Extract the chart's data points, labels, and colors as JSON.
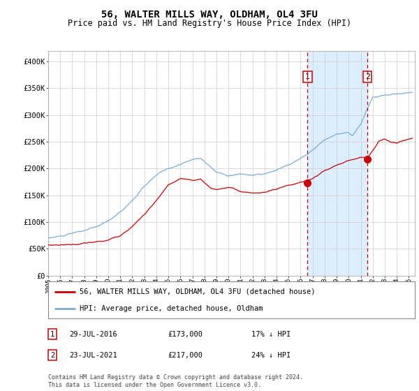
{
  "title": "56, WALTER MILLS WAY, OLDHAM, OL4 3FU",
  "subtitle": "Price paid vs. HM Land Registry's House Price Index (HPI)",
  "legend_line1": "56, WALTER MILLS WAY, OLDHAM, OL4 3FU (detached house)",
  "legend_line2": "HPI: Average price, detached house, Oldham",
  "annotation1_date": "29-JUL-2016",
  "annotation1_price": 173000,
  "annotation1_text": "17% ↓ HPI",
  "annotation2_date": "23-JUL-2021",
  "annotation2_price": 217000,
  "annotation2_text": "24% ↓ HPI",
  "footer": "Contains HM Land Registry data © Crown copyright and database right 2024.\nThis data is licensed under the Open Government Licence v3.0.",
  "hpi_color": "#7aadd6",
  "price_color": "#cc0000",
  "dot_color": "#cc0000",
  "vline_color": "#cc0000",
  "shade_color": "#ddeeff",
  "bg_color": "#ffffff",
  "grid_color": "#cccccc",
  "ylim": [
    0,
    420000
  ],
  "yticks": [
    0,
    50000,
    100000,
    150000,
    200000,
    250000,
    300000,
    350000,
    400000
  ],
  "ytick_labels": [
    "£0",
    "£50K",
    "£100K",
    "£150K",
    "£200K",
    "£250K",
    "£300K",
    "£350K",
    "£400K"
  ],
  "xtick_years": [
    1995,
    1996,
    1997,
    1998,
    1999,
    2000,
    2001,
    2002,
    2003,
    2004,
    2005,
    2006,
    2007,
    2008,
    2009,
    2010,
    2011,
    2012,
    2013,
    2014,
    2015,
    2016,
    2017,
    2018,
    2019,
    2020,
    2021,
    2022,
    2023,
    2024,
    2025
  ],
  "sale1_year": 2016.57,
  "sale2_year": 2021.55,
  "xmin": 1995.0,
  "xmax": 2025.5
}
